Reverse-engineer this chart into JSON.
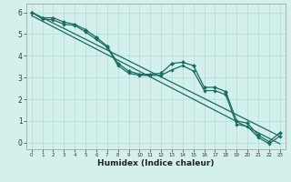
{
  "title": "",
  "xlabel": "Humidex (Indice chaleur)",
  "ylabel": "",
  "bg_color": "#d4f0ec",
  "grid_color": "#b8ddd8",
  "line_color": "#1a6b60",
  "xlim": [
    -0.5,
    23.5
  ],
  "ylim": [
    -0.3,
    6.4
  ],
  "xticks": [
    0,
    1,
    2,
    3,
    4,
    5,
    6,
    7,
    8,
    9,
    10,
    11,
    12,
    13,
    14,
    15,
    16,
    17,
    18,
    19,
    20,
    21,
    22,
    23
  ],
  "yticks": [
    0,
    1,
    2,
    3,
    4,
    5,
    6
  ],
  "line1_x": [
    0,
    1,
    2,
    3,
    4,
    5,
    6,
    7,
    8,
    9,
    10,
    11,
    12,
    13,
    14,
    15,
    16,
    17,
    18,
    19,
    20,
    21,
    22,
    23
  ],
  "line1_y": [
    6.0,
    5.75,
    5.75,
    5.55,
    5.45,
    5.2,
    4.85,
    4.45,
    3.65,
    3.3,
    3.15,
    3.15,
    3.2,
    3.65,
    3.7,
    3.55,
    2.55,
    2.55,
    2.35,
    1.0,
    0.9,
    0.35,
    0.05,
    0.45
  ],
  "line2_x": [
    0,
    1,
    2,
    3,
    4,
    5,
    6,
    7,
    8,
    9,
    10,
    11,
    12,
    13,
    14,
    15,
    16,
    17,
    18,
    19,
    20,
    21,
    22,
    23
  ],
  "line2_y": [
    6.0,
    5.7,
    5.65,
    5.45,
    5.4,
    5.1,
    4.75,
    4.4,
    3.55,
    3.2,
    3.1,
    3.1,
    3.1,
    3.35,
    3.55,
    3.3,
    2.4,
    2.4,
    2.2,
    0.85,
    0.75,
    0.25,
    -0.05,
    0.3
  ],
  "line3_x": [
    0,
    23
  ],
  "line3_y": [
    6.0,
    0.3
  ],
  "line4_x": [
    0,
    23
  ],
  "line4_y": [
    5.85,
    -0.05
  ],
  "xlabel_fontsize": 6.5,
  "tick_fontsize_x": 4.0,
  "tick_fontsize_y": 5.5
}
